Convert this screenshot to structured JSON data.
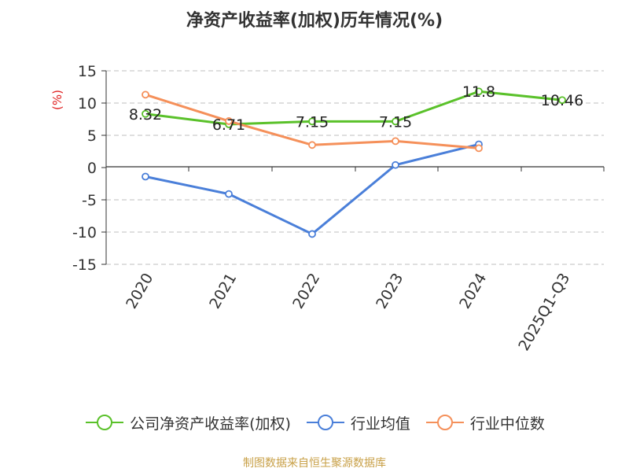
{
  "chart_data": {
    "type": "line",
    "title": "净资产收益率(加权)历年情况(%)",
    "ylabel": "(%)",
    "xlabel": "",
    "ylim": [
      -15,
      15
    ],
    "yticks": [
      -15,
      -10,
      -5,
      0,
      5,
      10,
      15
    ],
    "grid": true,
    "categories": [
      "2020",
      "2021",
      "2022",
      "2023",
      "2024",
      "2025Q1-Q3"
    ],
    "series": [
      {
        "name": "公司净资产收益率(加权)",
        "color": "#5ac12a",
        "values": [
          8.32,
          6.71,
          7.15,
          7.15,
          11.8,
          10.46
        ],
        "labels": [
          "8.32",
          "6.71",
          "7.15",
          "7.15",
          "11.8",
          "10.46"
        ]
      },
      {
        "name": "行业均值",
        "color": "#4a7fd9",
        "values": [
          -1.4,
          -4.1,
          -10.3,
          0.4,
          3.6,
          null
        ]
      },
      {
        "name": "行业中位数",
        "color": "#f5905a",
        "values": [
          11.3,
          7.2,
          3.5,
          4.1,
          3.0,
          null
        ]
      }
    ],
    "legend_position": "bottom"
  },
  "footer": "制图数据来自恒生聚源数据库"
}
